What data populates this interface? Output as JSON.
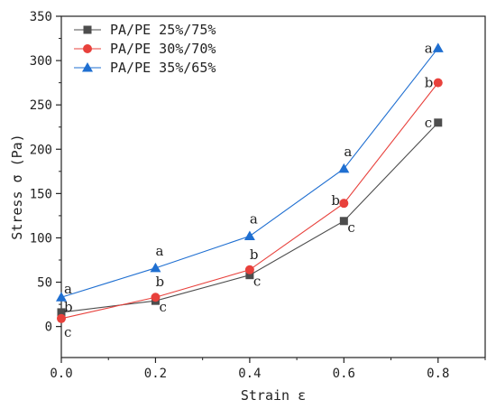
{
  "chart_data": {
    "type": "line",
    "xlabel": "Strain ε",
    "ylabel": "Stress σ (Pa)",
    "xlim": [
      0.0,
      0.9
    ],
    "ylim": [
      -35,
      350
    ],
    "xticks": [
      0.0,
      0.2,
      0.4,
      0.6,
      0.8
    ],
    "xtick_labels": [
      "0.0",
      "0.2",
      "0.4",
      "0.6",
      "0.8"
    ],
    "yticks": [
      0,
      50,
      100,
      150,
      200,
      250,
      300,
      350
    ],
    "ytick_labels": [
      "0",
      "50",
      "100",
      "150",
      "200",
      "250",
      "300",
      "350"
    ],
    "grid": false,
    "legend_position": "top-left",
    "x": [
      0.0,
      0.2,
      0.4,
      0.6,
      0.8
    ],
    "series": [
      {
        "name": "PA/PE 25%/75%",
        "marker": "square",
        "color": "#4d4d4d",
        "values": [
          16,
          29,
          58,
          119,
          230
        ],
        "labels": [
          "b",
          "c",
          "c",
          "c",
          "c"
        ]
      },
      {
        "name": "PA/PE 30%/70%",
        "marker": "circle",
        "color": "#e8413c",
        "values": [
          9,
          33,
          64,
          139,
          275
        ],
        "labels": [
          "c",
          "b",
          "b",
          "b",
          "b"
        ]
      },
      {
        "name": "PA/PE 35%/65%",
        "marker": "triangle",
        "color": "#1f6fd1",
        "values": [
          33,
          66,
          102,
          178,
          314
        ],
        "labels": [
          "a",
          "a",
          "a",
          "a",
          "a"
        ]
      }
    ]
  }
}
